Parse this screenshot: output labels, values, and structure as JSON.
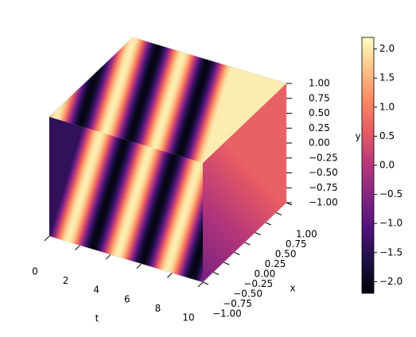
{
  "chart_data": {
    "type": "surface3d",
    "colormap": "magma",
    "grid": true,
    "axis_labels": {
      "t": "t",
      "x": "x",
      "y": "y"
    },
    "tlim": [
      0,
      10
    ],
    "tticks": [
      0,
      2,
      4,
      6,
      8,
      10
    ],
    "xlim": [
      -1,
      1
    ],
    "xticks": [
      {
        "value": -1,
        "label": "−1.00"
      },
      {
        "value": -0.75,
        "label": "−0.75"
      },
      {
        "value": -0.5,
        "label": "−0.50"
      },
      {
        "value": -0.25,
        "label": "−0.25"
      },
      {
        "value": 0,
        "label": "0.00"
      },
      {
        "value": 0.25,
        "label": "0.25"
      },
      {
        "value": 0.5,
        "label": "0.50"
      },
      {
        "value": 0.75,
        "label": "0.75"
      },
      {
        "value": 1,
        "label": "1.00"
      }
    ],
    "ylim": [
      -1,
      1
    ],
    "yticks": [
      {
        "value": -1,
        "label": "−1.00"
      },
      {
        "value": -0.75,
        "label": "−0.75"
      },
      {
        "value": -0.5,
        "label": "−0.50"
      },
      {
        "value": -0.25,
        "label": "−0.25"
      },
      {
        "value": 0,
        "label": "0.00"
      },
      {
        "value": 0.25,
        "label": "0.25"
      },
      {
        "value": 0.5,
        "label": "0.50"
      },
      {
        "value": 0.75,
        "label": "0.75"
      },
      {
        "value": 1,
        "label": "1.00"
      }
    ],
    "clim": [
      -2.2,
      2.2
    ],
    "cticks": [
      {
        "value": -2,
        "label": "−2.0"
      },
      {
        "value": -1.5,
        "label": "−1.5"
      },
      {
        "value": -1,
        "label": "−1.0"
      },
      {
        "value": -0.5,
        "label": "−0.5"
      },
      {
        "value": 0,
        "label": "0.0"
      },
      {
        "value": 0.5,
        "label": "0.5"
      },
      {
        "value": 1,
        "label": "1.0"
      },
      {
        "value": 1.5,
        "label": "1.5"
      },
      {
        "value": 2,
        "label": "2.0"
      }
    ]
  }
}
